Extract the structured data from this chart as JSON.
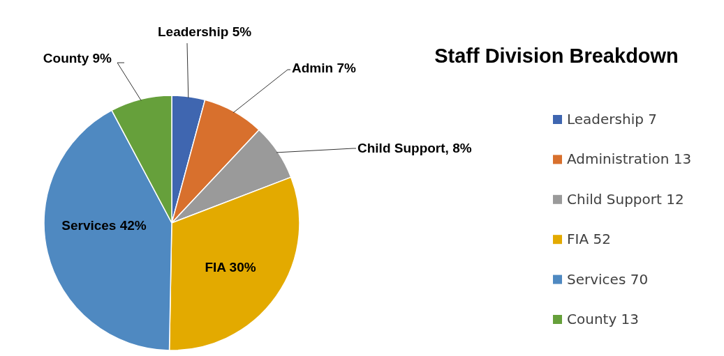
{
  "chart_data": {
    "type": "pie",
    "title": "Staff Division Breakdown",
    "categories": [
      "Leadership 7",
      "Administration 13",
      "Child Support 12",
      "FIA 52",
      "Services 70",
      "County 13"
    ],
    "values": [
      7,
      13,
      12,
      52,
      70,
      13
    ],
    "colors": [
      "#3f66b0",
      "#d8702d",
      "#9a9a9a",
      "#e3aa00",
      "#4f89c1",
      "#66a03b"
    ],
    "annotations": [
      "Leadership 5%",
      "Admin 7%",
      "Child Support, 8%",
      "FIA 30%",
      "Services 42%",
      "County 9%"
    ],
    "legend": "right"
  }
}
